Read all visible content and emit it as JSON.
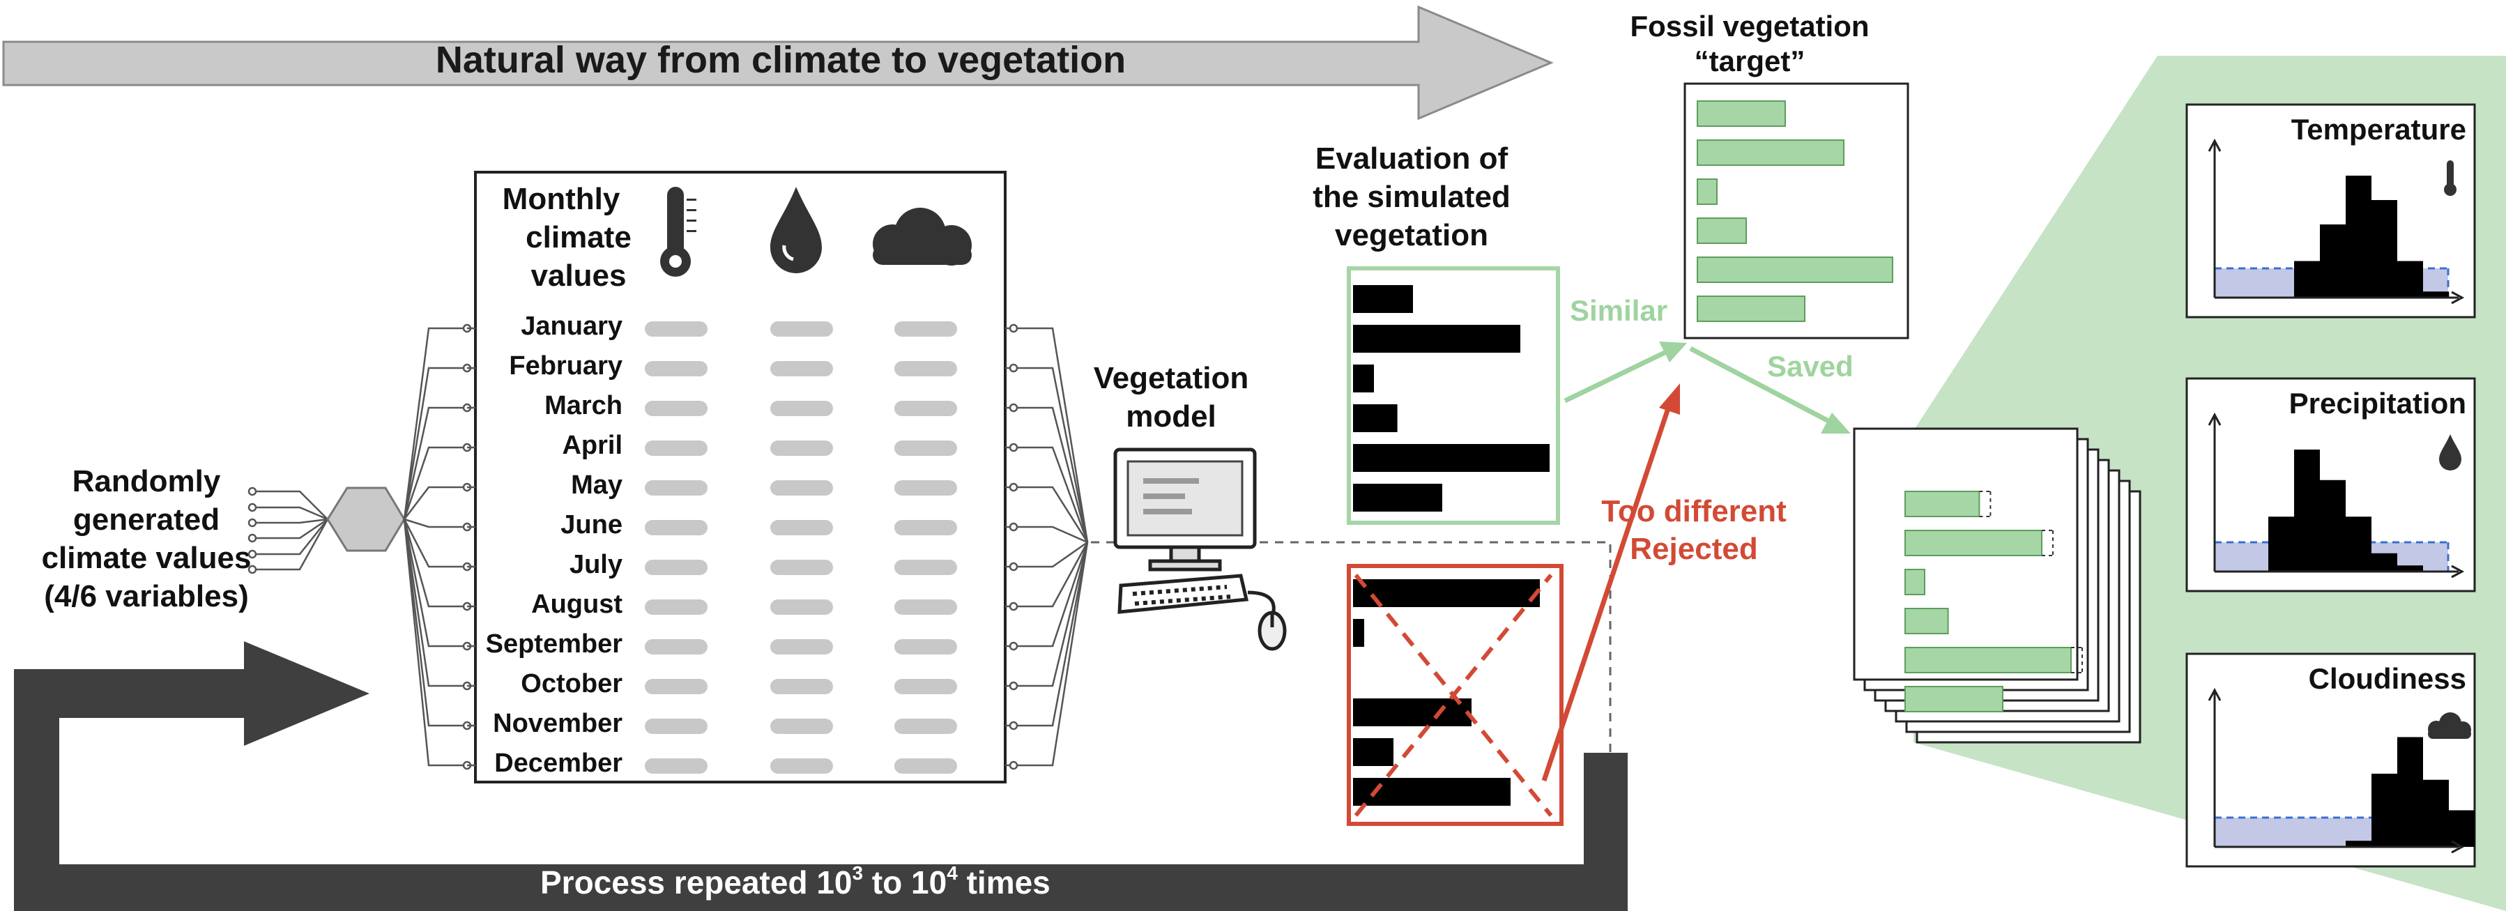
{
  "top_arrow": {
    "label": "Natural way from climate to vegetation"
  },
  "random": {
    "lines": [
      "Randomly",
      "generated",
      "climate values",
      "(4/6 variables)"
    ]
  },
  "table": {
    "header": [
      "Monthly",
      "climate",
      "values"
    ],
    "months": [
      "January",
      "February",
      "March",
      "April",
      "May",
      "June",
      "July",
      "August",
      "September",
      "October",
      "November",
      "December"
    ],
    "icons": [
      "thermometer-icon",
      "drop-icon",
      "cloud-icon"
    ]
  },
  "model": {
    "lines": [
      "Vegetation",
      "model"
    ]
  },
  "evaluation": {
    "lines": [
      "Evaluation of",
      "the simulated",
      "vegetation"
    ]
  },
  "fossil": {
    "lines": [
      "Fossil vegetation",
      "“target”"
    ]
  },
  "labels": {
    "similar": "Similar",
    "saved": "Saved",
    "too_different": "Too different",
    "rejected": "Rejected"
  },
  "bottom_arrow": {
    "label_main": "Process repeated 10",
    "sup1": "3",
    "label_mid": " to 10",
    "sup2": "4",
    "label_end": " times"
  },
  "panels": [
    "Temperature",
    "Precipitation",
    "Cloudiness"
  ],
  "vegetation_bars": {
    "target": [
      0.45,
      0.75,
      0.1,
      0.25,
      1.0,
      0.55
    ],
    "similar": [
      0.3,
      0.85,
      0.1,
      0.22,
      1.0,
      0.45
    ],
    "rejected": [
      0.95,
      0.05,
      0.0,
      0.6,
      0.2,
      0.8
    ],
    "saved": [
      0.38,
      0.7,
      0.1,
      0.22,
      0.85,
      0.5
    ]
  },
  "colors": {
    "green": "#a6d5a6",
    "green_dark": "#5d9e5d",
    "green_text": "#9fd39f",
    "red": "#d24a35",
    "grey_arrow": "#c9c9c9",
    "dark_arrow": "#3f3f3f",
    "panel_bg": "#c6e3c6",
    "blue_fill": "#c3c8e6",
    "blue_line": "#3a6fcf"
  }
}
